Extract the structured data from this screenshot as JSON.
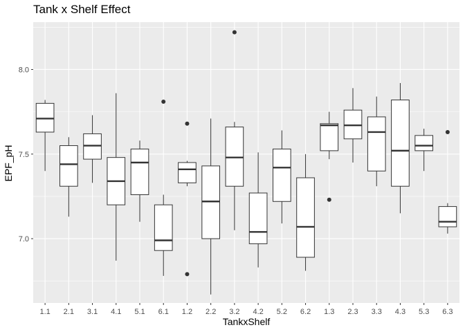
{
  "chart_data": {
    "type": "boxplot",
    "title": "Tank x Shelf Effect",
    "xlabel": "TankxShelf",
    "ylabel": "EPF_pH",
    "ylim": [
      6.62,
      8.28
    ],
    "yticks": [
      7.0,
      7.5,
      8.0
    ],
    "ytick_labels": [
      "7.0",
      "7.5",
      "8.0"
    ],
    "grid": true,
    "categories": [
      "1.1",
      "2.1",
      "3.1",
      "4.1",
      "5.1",
      "6.1",
      "1.2",
      "2.2",
      "3.2",
      "4.2",
      "5.2",
      "6.2",
      "1.3",
      "2.3",
      "3.3",
      "4.3",
      "5.3",
      "6.3"
    ],
    "boxes": [
      {
        "min": 7.4,
        "q1": 7.63,
        "median": 7.71,
        "q3": 7.8,
        "max": 7.82,
        "outliers": []
      },
      {
        "min": 7.13,
        "q1": 7.31,
        "median": 7.44,
        "q3": 7.55,
        "max": 7.6,
        "outliers": []
      },
      {
        "min": 7.33,
        "q1": 7.47,
        "median": 7.55,
        "q3": 7.62,
        "max": 7.73,
        "outliers": []
      },
      {
        "min": 6.87,
        "q1": 7.2,
        "median": 7.34,
        "q3": 7.48,
        "max": 7.86,
        "outliers": []
      },
      {
        "min": 7.1,
        "q1": 7.26,
        "median": 7.45,
        "q3": 7.53,
        "max": 7.58,
        "outliers": []
      },
      {
        "min": 6.78,
        "q1": 6.93,
        "median": 6.99,
        "q3": 7.2,
        "max": 7.26,
        "outliers": [
          7.81
        ]
      },
      {
        "min": 7.31,
        "q1": 7.33,
        "median": 7.41,
        "q3": 7.45,
        "max": 7.46,
        "outliers": [
          7.68,
          6.79
        ]
      },
      {
        "min": 6.67,
        "q1": 7.0,
        "median": 7.22,
        "q3": 7.43,
        "max": 7.71,
        "outliers": []
      },
      {
        "min": 7.05,
        "q1": 7.31,
        "median": 7.48,
        "q3": 7.66,
        "max": 7.69,
        "outliers": [
          8.22
        ]
      },
      {
        "min": 6.83,
        "q1": 6.97,
        "median": 7.04,
        "q3": 7.27,
        "max": 7.51,
        "outliers": []
      },
      {
        "min": 7.09,
        "q1": 7.22,
        "median": 7.42,
        "q3": 7.53,
        "max": 7.64,
        "outliers": []
      },
      {
        "min": 6.81,
        "q1": 6.89,
        "median": 7.07,
        "q3": 7.36,
        "max": 7.5,
        "outliers": []
      },
      {
        "min": 7.47,
        "q1": 7.52,
        "median": 7.67,
        "q3": 7.68,
        "max": 7.75,
        "outliers": [
          7.23
        ]
      },
      {
        "min": 7.45,
        "q1": 7.59,
        "median": 7.67,
        "q3": 7.76,
        "max": 7.89,
        "outliers": []
      },
      {
        "min": 7.31,
        "q1": 7.4,
        "median": 7.63,
        "q3": 7.72,
        "max": 7.84,
        "outliers": []
      },
      {
        "min": 7.15,
        "q1": 7.31,
        "median": 7.52,
        "q3": 7.82,
        "max": 7.92,
        "outliers": []
      },
      {
        "min": 7.4,
        "q1": 7.52,
        "median": 7.55,
        "q3": 7.61,
        "max": 7.65,
        "outliers": []
      },
      {
        "min": 7.03,
        "q1": 7.07,
        "median": 7.1,
        "q3": 7.19,
        "max": 7.21,
        "outliers": [
          7.63
        ]
      }
    ]
  },
  "colors": {
    "panel": "#ebebeb",
    "grid_major": "#ffffff",
    "box_fill": "#ffffff",
    "box_stroke": "#333333",
    "outlier": "#333333"
  }
}
